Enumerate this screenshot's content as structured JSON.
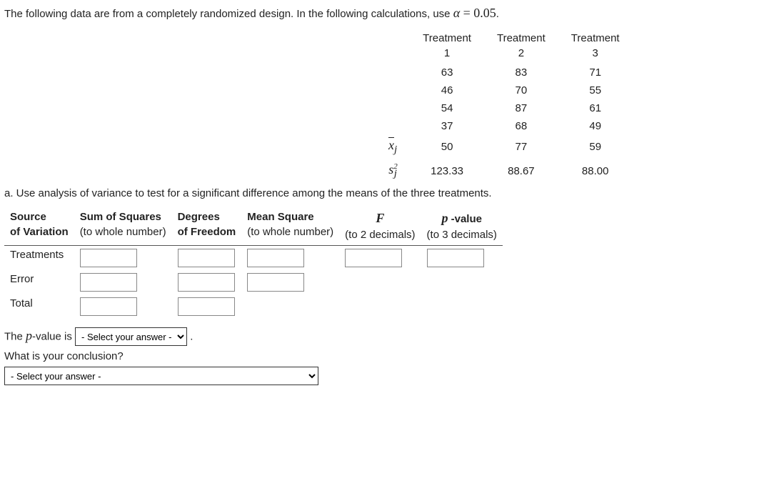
{
  "intro_prefix": "The following data are from a completely randomized design. In the following calculations, use ",
  "alpha_symbol": "α",
  "alpha_eq": " = 0.05",
  "period": ".",
  "data_table": {
    "headers": {
      "t1a": "Treatment",
      "t1b": "1",
      "t2a": "Treatment",
      "t2b": "2",
      "t3a": "Treatment",
      "t3b": "3"
    },
    "rows": [
      {
        "c1": "63",
        "c2": "83",
        "c3": "71"
      },
      {
        "c1": "46",
        "c2": "70",
        "c3": "55"
      },
      {
        "c1": "54",
        "c2": "87",
        "c3": "61"
      },
      {
        "c1": "37",
        "c2": "68",
        "c3": "49"
      }
    ],
    "mean_label_over": "x",
    "mean_label_sub": "j",
    "means": {
      "c1": "50",
      "c2": "77",
      "c3": "59"
    },
    "var_label_base": "s",
    "var_label_sup": "2",
    "var_label_sub": "j",
    "vars": {
      "c1": "123.33",
      "c2": "88.67",
      "c3": "88.00"
    }
  },
  "question_a_label": "a.",
  "question_a_text": " Use analysis of variance to test for a significant difference among the means of the three treatments.",
  "anova": {
    "h_source1": "Source",
    "h_source2": "of Variation",
    "h_ss1": "Sum of Squares",
    "h_ss2": "(to whole number)",
    "h_df1": "Degrees",
    "h_df2": "of Freedom",
    "h_ms1": "Mean Square",
    "h_ms2": "(to whole number)",
    "h_f_sym": "F",
    "h_f2": "(to 2 decimals)",
    "h_p1a": "p",
    "h_p1b": " -value",
    "h_p2": "(to 3 decimals)",
    "row1": "Treatments",
    "row2": "Error",
    "row3": "Total"
  },
  "pvalue_prefix": "The ",
  "pvalue_p": "p",
  "pvalue_suffix": "-value is ",
  "select_placeholder": "- Select your answer -",
  "conclusion_q": "What is your conclusion?"
}
